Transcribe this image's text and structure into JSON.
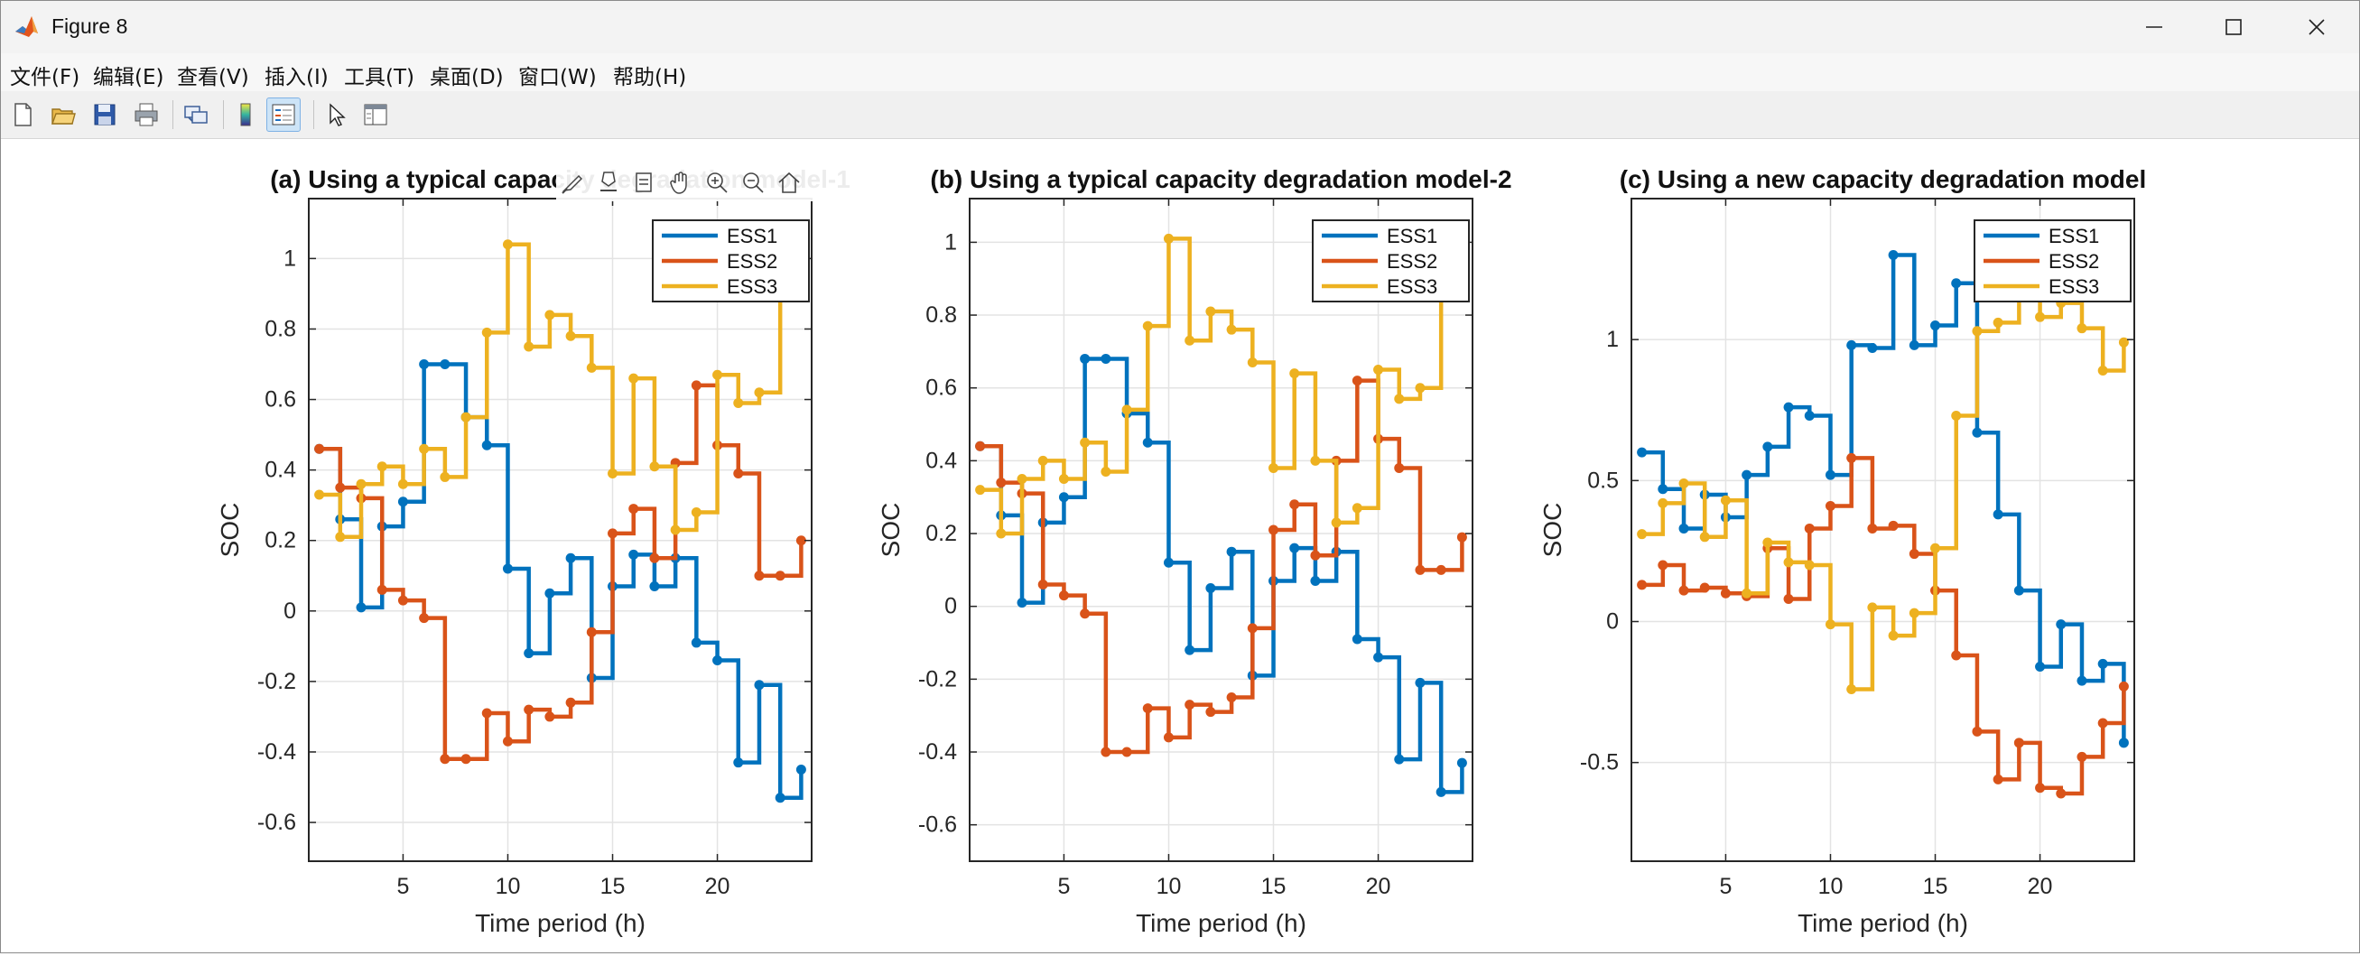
{
  "window": {
    "title": "Figure 8"
  },
  "menu": [
    "文件(F)",
    "编辑(E)",
    "查看(V)",
    "插入(I)",
    "工具(T)",
    "桌面(D)",
    "窗口(W)",
    "帮助(H)"
  ],
  "toolbar": {
    "icons": [
      "new-figure-icon",
      "open-file-icon",
      "save-icon",
      "print-icon",
      "link-icon",
      "colorbar-icon",
      "legend-icon",
      "pointer-icon",
      "property-inspector-icon"
    ]
  },
  "axes_toolbar": {
    "icons": [
      "brush-icon",
      "data-tips-icon",
      "restore-icon",
      "pan-icon",
      "zoom-in-icon",
      "zoom-out-icon",
      "home-icon"
    ]
  },
  "colors": {
    "ESS1": "#0072BD",
    "ESS2": "#D95319",
    "ESS3": "#EDB120"
  },
  "chart_data": [
    {
      "type": "line",
      "step": "post",
      "title": "(a) Using a typical capacity degradation model-1",
      "xlabel": "Time period (h)",
      "ylabel": "SOC",
      "xlim": [
        0.5,
        24.5
      ],
      "ylim": [
        -0.71,
        1.17
      ],
      "xticks": [
        5,
        10,
        15,
        20
      ],
      "yticks": [
        -0.6,
        -0.4,
        -0.2,
        0,
        0.2,
        0.4,
        0.6,
        0.8,
        1
      ],
      "ytick_labels": [
        "-0.6",
        "-0.4",
        "-0.2",
        "0",
        "0.2",
        "0.4",
        "0.6",
        "0.8",
        "1"
      ],
      "grid": true,
      "legend": "top-right",
      "series": [
        {
          "name": "ESS1",
          "x": [
            1,
            2,
            3,
            4,
            5,
            6,
            7,
            8,
            9,
            10,
            11,
            12,
            13,
            14,
            15,
            16,
            17,
            18,
            19,
            20,
            21,
            22,
            23,
            24
          ],
          "values": [
            0.46,
            0.26,
            0.01,
            0.24,
            0.31,
            0.7,
            0.7,
            0.55,
            0.47,
            0.12,
            -0.12,
            0.05,
            0.15,
            -0.19,
            0.07,
            0.16,
            0.07,
            0.15,
            -0.09,
            -0.14,
            -0.43,
            -0.21,
            -0.53,
            -0.45
          ]
        },
        {
          "name": "ESS2",
          "x": [
            1,
            2,
            3,
            4,
            5,
            6,
            7,
            8,
            9,
            10,
            11,
            12,
            13,
            14,
            15,
            16,
            17,
            18,
            19,
            20,
            21,
            22,
            23,
            24
          ],
          "values": [
            0.46,
            0.35,
            0.32,
            0.06,
            0.03,
            -0.02,
            -0.42,
            -0.42,
            -0.29,
            -0.37,
            -0.28,
            -0.3,
            -0.26,
            -0.06,
            0.22,
            0.29,
            0.15,
            0.42,
            0.64,
            0.47,
            0.39,
            0.1,
            0.1,
            0.2
          ]
        },
        {
          "name": "ESS3",
          "x": [
            1,
            2,
            3,
            4,
            5,
            6,
            7,
            8,
            9,
            10,
            11,
            12,
            13,
            14,
            15,
            16,
            17,
            18,
            19,
            20,
            21,
            22,
            23,
            24
          ],
          "values": [
            0.33,
            0.21,
            0.36,
            0.41,
            0.36,
            0.46,
            0.38,
            0.55,
            0.79,
            1.04,
            0.75,
            0.84,
            0.78,
            0.69,
            0.39,
            0.66,
            0.41,
            0.23,
            0.28,
            0.67,
            0.59,
            0.62,
            0.96,
            0.97
          ]
        }
      ]
    },
    {
      "type": "line",
      "step": "post",
      "title": "(b) Using a typical capacity degradation model-2",
      "xlabel": "Time period (h)",
      "ylabel": "SOC",
      "xlim": [
        0.5,
        24.5
      ],
      "ylim": [
        -0.7,
        1.12
      ],
      "xticks": [
        5,
        10,
        15,
        20
      ],
      "yticks": [
        -0.6,
        -0.4,
        -0.2,
        0,
        0.2,
        0.4,
        0.6,
        0.8,
        1
      ],
      "ytick_labels": [
        "-0.6",
        "-0.4",
        "-0.2",
        "0",
        "0.2",
        "0.4",
        "0.6",
        "0.8",
        "1"
      ],
      "grid": true,
      "legend": "top-right",
      "series": [
        {
          "name": "ESS1",
          "x": [
            1,
            2,
            3,
            4,
            5,
            6,
            7,
            8,
            9,
            10,
            11,
            12,
            13,
            14,
            15,
            16,
            17,
            18,
            19,
            20,
            21,
            22,
            23,
            24
          ],
          "values": [
            0.44,
            0.25,
            0.01,
            0.23,
            0.3,
            0.68,
            0.68,
            0.53,
            0.45,
            0.12,
            -0.12,
            0.05,
            0.15,
            -0.19,
            0.07,
            0.16,
            0.07,
            0.15,
            -0.09,
            -0.14,
            -0.42,
            -0.21,
            -0.51,
            -0.43
          ]
        },
        {
          "name": "ESS2",
          "x": [
            1,
            2,
            3,
            4,
            5,
            6,
            7,
            8,
            9,
            10,
            11,
            12,
            13,
            14,
            15,
            16,
            17,
            18,
            19,
            20,
            21,
            22,
            23,
            24
          ],
          "values": [
            0.44,
            0.34,
            0.31,
            0.06,
            0.03,
            -0.02,
            -0.4,
            -0.4,
            -0.28,
            -0.36,
            -0.27,
            -0.29,
            -0.25,
            -0.06,
            0.21,
            0.28,
            0.14,
            0.4,
            0.62,
            0.46,
            0.38,
            0.1,
            0.1,
            0.19
          ]
        },
        {
          "name": "ESS3",
          "x": [
            1,
            2,
            3,
            4,
            5,
            6,
            7,
            8,
            9,
            10,
            11,
            12,
            13,
            14,
            15,
            16,
            17,
            18,
            19,
            20,
            21,
            22,
            23,
            24
          ],
          "values": [
            0.32,
            0.2,
            0.35,
            0.4,
            0.35,
            0.45,
            0.37,
            0.54,
            0.77,
            1.01,
            0.73,
            0.81,
            0.76,
            0.67,
            0.38,
            0.64,
            0.4,
            0.23,
            0.27,
            0.65,
            0.57,
            0.6,
            0.94,
            0.94
          ]
        }
      ]
    },
    {
      "type": "line",
      "step": "post",
      "title": "(c) Using a new capacity degradation model",
      "xlabel": "Time period (h)",
      "ylabel": "SOC",
      "xlim": [
        0.5,
        24.5
      ],
      "ylim": [
        -0.85,
        1.5
      ],
      "xticks": [
        5,
        10,
        15,
        20
      ],
      "yticks": [
        -0.5,
        0,
        0.5,
        1
      ],
      "ytick_labels": [
        "-0.5",
        "0",
        "0.5",
        "1"
      ],
      "grid": true,
      "legend": "top-right",
      "series": [
        {
          "name": "ESS1",
          "x": [
            1,
            2,
            3,
            4,
            5,
            6,
            7,
            8,
            9,
            10,
            11,
            12,
            13,
            14,
            15,
            16,
            17,
            18,
            19,
            20,
            21,
            22,
            23,
            24
          ],
          "values": [
            0.6,
            0.47,
            0.33,
            0.45,
            0.37,
            0.52,
            0.62,
            0.76,
            0.73,
            0.52,
            0.98,
            0.97,
            1.3,
            0.98,
            1.05,
            1.2,
            0.67,
            0.38,
            0.11,
            -0.16,
            -0.01,
            -0.21,
            -0.15,
            -0.43
          ]
        },
        {
          "name": "ESS2",
          "x": [
            1,
            2,
            3,
            4,
            5,
            6,
            7,
            8,
            9,
            10,
            11,
            12,
            13,
            14,
            15,
            16,
            17,
            18,
            19,
            20,
            21,
            22,
            23,
            24
          ],
          "values": [
            0.13,
            0.2,
            0.11,
            0.12,
            0.1,
            0.09,
            0.26,
            0.08,
            0.33,
            0.41,
            0.58,
            0.33,
            0.34,
            0.24,
            0.11,
            -0.12,
            -0.39,
            -0.56,
            -0.43,
            -0.59,
            -0.61,
            -0.48,
            -0.36,
            -0.23
          ]
        },
        {
          "name": "ESS3",
          "x": [
            1,
            2,
            3,
            4,
            5,
            6,
            7,
            8,
            9,
            10,
            11,
            12,
            13,
            14,
            15,
            16,
            17,
            18,
            19,
            20,
            21,
            22,
            23,
            24
          ],
          "values": [
            0.31,
            0.42,
            0.49,
            0.3,
            0.43,
            0.1,
            0.28,
            0.21,
            0.2,
            -0.01,
            -0.24,
            0.05,
            -0.05,
            0.03,
            0.26,
            0.73,
            1.03,
            1.06,
            1.33,
            1.08,
            1.13,
            1.04,
            0.89,
            0.99
          ]
        }
      ]
    }
  ]
}
